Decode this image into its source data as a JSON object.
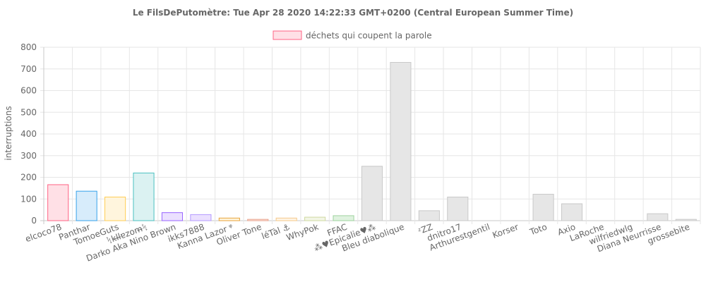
{
  "chart_data": {
    "type": "bar",
    "title": "Le FilsDePutomètre: Tue Apr 28 2020 14:22:33 GMT+0200 (Central European Summer Time)",
    "ylabel": "interruptions",
    "xlabel": "",
    "ylim": [
      0,
      800
    ],
    "y_ticks": [
      "0",
      "100",
      "200",
      "300",
      "400",
      "500",
      "600",
      "700",
      "800"
    ],
    "grid": true,
    "legend": {
      "label": "déchets qui coupent la parole",
      "placement": "top-center",
      "fill": "#ffe0e6",
      "stroke": "#ff6384"
    },
    "categories": [
      "elcoco78",
      "Panthar",
      "TomoeGuts",
      "ᛪkl̶l̶ɐzom̶ᛪ",
      "Darko Aka Nino Brown",
      "ikks7888",
      "Kanna Lazor ᵠ",
      "Oliver Tone",
      "léTàl ⚓",
      "WhyPok",
      "FFAC",
      "⁂♥Epicalie♥⁂",
      "Bleu diabolique",
      "ᶻZZ",
      "dnitro17",
      "Arthurestgentil",
      "Korser",
      "Toto",
      "Axio",
      "LaRoche",
      "wilfriedwlg",
      "Diana Neurrisse",
      "grossebite"
    ],
    "series": [
      {
        "name": "déchets qui coupent la parole",
        "values": [
          166,
          136,
          109,
          220,
          37,
          28,
          12,
          6,
          12,
          16,
          23,
          251,
          730,
          46,
          109,
          0,
          0,
          122,
          78,
          0,
          0,
          32,
          6
        ],
        "fills": [
          "#ffe0e6",
          "#d7ecfb",
          "#fff5dd",
          "#dbf2f2",
          "#ebe0ff",
          "#ebe0ff",
          "#fff5dd",
          "#fde9e2",
          "#fff5e6",
          "#f3f6e6",
          "#e0f2e0",
          "#e6e6e6",
          "#e6e6e6",
          "#e6e6e6",
          "#e6e6e6",
          "#e6e6e6",
          "#e6e6e6",
          "#e6e6e6",
          "#e6e6e6",
          "#e6e6e6",
          "#e6e6e6",
          "#e6e6e6",
          "#e6e6e6"
        ],
        "strokes": [
          "#ff6384",
          "#36a2eb",
          "#ffce56",
          "#4bc0c0",
          "#9966ff",
          "#b49bff",
          "#e8a33a",
          "#e8a08a",
          "#f5c98a",
          "#cfd9a0",
          "#9ed39e",
          "#c9c9c9",
          "#c9c9c9",
          "#c9c9c9",
          "#c9c9c9",
          "#c9c9c9",
          "#c9c9c9",
          "#c9c9c9",
          "#c9c9c9",
          "#c9c9c9",
          "#c9c9c9",
          "#c9c9c9",
          "#c9c9c9"
        ]
      }
    ]
  }
}
